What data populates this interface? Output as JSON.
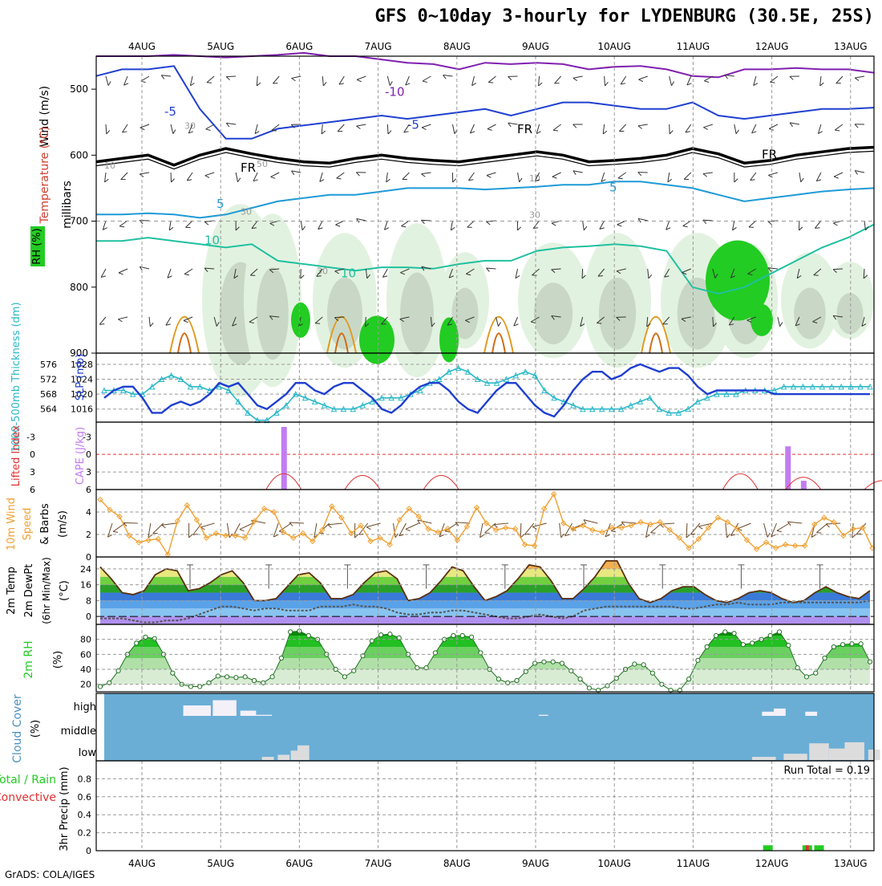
{
  "title": "GFS 0~10day 3-hourly for LYDENBURG (30.5E, 25S)",
  "credit": "GrADS: COLA/IGES",
  "date_labels": [
    "4AUG",
    "5AUG",
    "6AUG",
    "7AUG",
    "8AUG",
    "9AUG",
    "10AUG",
    "11AUG",
    "12AUG",
    "13AUG"
  ],
  "colors": {
    "frame": "#000000",
    "grid": "#9a9a9a",
    "slp": "#1f3fd0",
    "thickness": "#2ab8c8",
    "lifted": "#e03030",
    "cape": "#c27cf0",
    "wind": "#f0a030",
    "barb": "#6b4a2a",
    "cloud": "#6aaed6",
    "rh_green": "#22cc22",
    "dew": "#555555",
    "rain": "#22cc22",
    "conv": "#e03030"
  },
  "chart_data": [
    {
      "type": "contour",
      "panel": "upper-air",
      "ylabel": "millibars",
      "legend_labels": [
        "RH (%)",
        "Temperature (°C)",
        "Wind (m/s)"
      ],
      "yticks": [
        500,
        600,
        700,
        800,
        900
      ],
      "ylim": [
        900,
        450
      ],
      "contour_labels": [
        "-5",
        "-10",
        "-5",
        "FR",
        "FR",
        "FR",
        "5",
        "5",
        "10",
        "10",
        "30",
        "30",
        "30",
        "10",
        "10",
        "30",
        "50"
      ],
      "freezing_level_mb": [
        610,
        605,
        600,
        615,
        600,
        590,
        598,
        605,
        610,
        612,
        605,
        600,
        605,
        608,
        610,
        605,
        600,
        595,
        600,
        610,
        608,
        605,
        600,
        590,
        598,
        612,
        608,
        600,
        595,
        590,
        588
      ],
      "temp_minus5_mb": [
        480,
        470,
        470,
        465,
        530,
        575,
        575,
        560,
        555,
        550,
        545,
        540,
        545,
        540,
        535,
        530,
        540,
        530,
        520,
        520,
        525,
        530,
        530,
        520,
        540,
        545,
        540,
        535,
        530,
        530,
        528
      ],
      "temp_5_mb": [
        690,
        690,
        688,
        690,
        695,
        690,
        680,
        670,
        665,
        660,
        660,
        655,
        650,
        650,
        650,
        652,
        650,
        648,
        645,
        645,
        640,
        640,
        645,
        650,
        660,
        670,
        665,
        660,
        655,
        652,
        650
      ],
      "temp_10_mb": [
        730,
        730,
        725,
        730,
        735,
        740,
        735,
        760,
        765,
        770,
        775,
        770,
        770,
        772,
        765,
        760,
        760,
        745,
        740,
        738,
        735,
        738,
        745,
        800,
        810,
        800,
        780,
        760,
        740,
        725,
        705
      ],
      "temp_minus10_mb": [
        450,
        450,
        450,
        448,
        450,
        452,
        450,
        448,
        445,
        450,
        450,
        455,
        460,
        462,
        470,
        460,
        462,
        460,
        462,
        470,
        466,
        465,
        470,
        480,
        482,
        470,
        470,
        468,
        470,
        470,
        475
      ]
    },
    {
      "type": "line",
      "panel": "slp-thickness",
      "ylabel_left": "1000-500mb Thickness (dm)",
      "ylabel_right": "SLP (mb)",
      "yticks_left": [
        564,
        568,
        572,
        576
      ],
      "yticks_right": [
        1016,
        1020,
        1024,
        1028
      ],
      "ylim_slp": [
        1012.5,
        1031
      ],
      "series": [
        {
          "name": "SLP (mb)",
          "values": [
            1019,
            1021,
            1022,
            1022,
            1019,
            1015,
            1015,
            1017,
            1018,
            1017,
            1018,
            1020,
            1023,
            1022,
            1023,
            1020,
            1017,
            1016,
            1018,
            1020,
            1023,
            1023,
            1021,
            1020,
            1022,
            1023,
            1023,
            1021,
            1019,
            1016,
            1015,
            1017,
            1020,
            1022,
            1023,
            1023,
            1021,
            1018,
            1016,
            1015,
            1018,
            1021,
            1023,
            1023,
            1020,
            1017,
            1015,
            1014,
            1017,
            1021,
            1024,
            1026,
            1026,
            1024,
            1025,
            1027,
            1028,
            1027,
            1026,
            1027,
            1027,
            1025,
            1022,
            1020,
            1021,
            1021,
            1021,
            1021,
            1021,
            1021,
            1020,
            1020,
            1020,
            1020,
            1020,
            1020,
            1020,
            1020,
            1020,
            1020,
            1020
          ]
        },
        {
          "name": "Thickness",
          "values": [
            1021,
            1021,
            1021,
            1020,
            1020,
            1022,
            1024,
            1025,
            1024,
            1022,
            1022,
            1021,
            1022,
            1021,
            1018,
            1015,
            1013,
            1013,
            1015,
            1017,
            1020,
            1019,
            1018,
            1017,
            1016,
            1016,
            1016,
            1017,
            1018,
            1019,
            1019,
            1019,
            1020,
            1021,
            1023,
            1024,
            1026,
            1027,
            1026,
            1024,
            1023,
            1023,
            1024,
            1025,
            1026,
            1025,
            1021,
            1019,
            1018,
            1017,
            1016,
            1016,
            1016,
            1016,
            1016,
            1017,
            1018,
            1019,
            1016,
            1015,
            1015,
            1016,
            1018,
            1019,
            1020,
            1020,
            1020,
            1021,
            1021,
            1021,
            1021,
            1022,
            1022,
            1022,
            1022,
            1022,
            1022,
            1022,
            1022,
            1022,
            1022
          ]
        }
      ]
    },
    {
      "type": "bar",
      "panel": "cape-lifted",
      "ylabel_left": "Lifted Index",
      "ylabel_right": "CAPE (J/kg)",
      "yticks_left": [
        "-3",
        "0",
        "3",
        "6"
      ],
      "yticks_right": [
        "-3",
        "0",
        "3",
        "6"
      ],
      "lifted_zero_line": 0,
      "cape_bars": [
        {
          "day": 1.8,
          "value": 1000
        },
        {
          "day": 8.2,
          "value": 690
        },
        {
          "day": 8.4,
          "value": 140
        }
      ],
      "lifted_bumps": [
        {
          "center": 1.8,
          "height": 0.9
        },
        {
          "center": 2.8,
          "height": 0.8
        },
        {
          "center": 3.8,
          "height": 0.8
        },
        {
          "center": 7.6,
          "height": 0.9
        },
        {
          "center": 8.4,
          "height": 0.7
        },
        {
          "center": 9.4,
          "height": 0.5
        }
      ]
    },
    {
      "type": "line",
      "panel": "wind-10m",
      "ylabel": "10m Wind Speed & Barbs (m/s)",
      "yticks": [
        0,
        2,
        4
      ],
      "ylim": [
        0,
        6
      ],
      "series": [
        {
          "name": "10m Wind Speed",
          "values": [
            5.1,
            4.2,
            3.6,
            1.9,
            1.3,
            1.5,
            1.6,
            0.2,
            3.2,
            4.6,
            3.3,
            1.7,
            2.1,
            1.9,
            1.9,
            1.7,
            3.2,
            4.3,
            4.0,
            2.2,
            1.7,
            2.1,
            1.4,
            2.4,
            4.5,
            3.5,
            2.1,
            2.8,
            1.4,
            1.7,
            1.1,
            3.3,
            4.3,
            3.6,
            2.5,
            2.2,
            2.5,
            1.5,
            2.7,
            4.4,
            3.0,
            2.4,
            2.6,
            2.5,
            1.1,
            1.0,
            4.3,
            5.6,
            3.0,
            2.5,
            2.8,
            2.4,
            2.2,
            2.6,
            2.6,
            2.8,
            3.1,
            2.9,
            3.1,
            2.4,
            1.7,
            0.8,
            1.6,
            2.6,
            3.5,
            3.1,
            2.5,
            1.5,
            0.7,
            1.3,
            0.8,
            1.1,
            1.0,
            1.0,
            2.9,
            3.5,
            3.1,
            1.9,
            2.5,
            2.6,
            0.8
          ]
        }
      ]
    },
    {
      "type": "area",
      "panel": "temp-dewpoint",
      "ylabel": "2m Temp 2m DewPt (6hr Min/Max) (°C)",
      "yticks": [
        0,
        8,
        16,
        24
      ],
      "ylim": [
        -4,
        30
      ],
      "series": [
        {
          "name": "2m Temp",
          "values": [
            25,
            19,
            12,
            11,
            13,
            21,
            24,
            23,
            13,
            14,
            17,
            21,
            23,
            17,
            8,
            8,
            9,
            15,
            21,
            22,
            17,
            9,
            9,
            11,
            17,
            22,
            23,
            19,
            8,
            9,
            12,
            18,
            25,
            23,
            15,
            8,
            10,
            13,
            19,
            26,
            25,
            18,
            9,
            9,
            14,
            20,
            28,
            28,
            17,
            9,
            7,
            9,
            13,
            15,
            15,
            11,
            8,
            7,
            9,
            12,
            13,
            12,
            9,
            7,
            8,
            12,
            15,
            12,
            10,
            9,
            13
          ]
        },
        {
          "name": "2m DewPt",
          "values": [
            -1,
            -1,
            -1,
            -2,
            -3,
            -3,
            -2,
            -2,
            -1,
            1,
            3,
            5,
            5,
            4,
            3,
            4,
            4,
            3,
            3,
            3,
            5,
            5,
            5,
            6,
            5,
            5,
            4,
            2,
            1,
            1,
            2,
            2,
            3,
            3,
            2,
            1,
            0,
            -1,
            -1,
            0,
            1,
            0,
            -1,
            0,
            3,
            4,
            5,
            5,
            5,
            5,
            5,
            5,
            5,
            4,
            4,
            5,
            6,
            6,
            7,
            6,
            6,
            6,
            7,
            7,
            7,
            7,
            7,
            7,
            7,
            7,
            8
          ]
        }
      ]
    },
    {
      "type": "area",
      "panel": "rh-2m",
      "ylabel": "2m RH (%)",
      "yticks": [
        20,
        40,
        60,
        80
      ],
      "ylim": [
        10,
        100
      ],
      "series": [
        {
          "name": "2m RH",
          "values": [
            17,
            22,
            38,
            60,
            75,
            83,
            81,
            60,
            35,
            20,
            17,
            17,
            22,
            31,
            30,
            29,
            30,
            25,
            22,
            30,
            55,
            90,
            91,
            85,
            80,
            60,
            40,
            30,
            38,
            58,
            78,
            86,
            87,
            82,
            60,
            42,
            42,
            62,
            80,
            85,
            85,
            83,
            62,
            40,
            27,
            22,
            25,
            37,
            48,
            50,
            50,
            48,
            38,
            27,
            15,
            12,
            18,
            28,
            40,
            47,
            46,
            35,
            20,
            12,
            12,
            27,
            52,
            70,
            85,
            90,
            88,
            73,
            75,
            80,
            85,
            90,
            72,
            42,
            30,
            35,
            55,
            70,
            73,
            74,
            74,
            50
          ]
        }
      ]
    },
    {
      "type": "bar",
      "panel": "cloud-cover",
      "ylabel": "Cloud Cover (%)",
      "yticks": [
        "high",
        "middle",
        "low"
      ],
      "high_cloud": [
        {
          "day": 0.7,
          "width": 0.35,
          "value": 50
        },
        {
          "day": 1.05,
          "width": 0.3,
          "value": 75
        },
        {
          "day": 1.35,
          "width": 0.2,
          "value": 25
        },
        {
          "day": 1.55,
          "width": 0.2,
          "value": 5
        },
        {
          "day": 5.1,
          "width": 0.12,
          "value": 5
        },
        {
          "day": 7.95,
          "width": 0.15,
          "value": 20
        },
        {
          "day": 8.1,
          "width": 0.15,
          "value": 35
        },
        {
          "day": 8.5,
          "width": 0.15,
          "value": 20
        }
      ],
      "low_cloud": [
        {
          "day": 1.6,
          "width": 0.15,
          "value": 15
        },
        {
          "day": 1.8,
          "width": 0.15,
          "value": 25
        },
        {
          "day": 1.95,
          "width": 0.12,
          "value": 45
        },
        {
          "day": 2.05,
          "width": 0.15,
          "value": 70
        },
        {
          "day": 7.9,
          "width": 0.3,
          "value": 15
        },
        {
          "day": 8.3,
          "width": 0.3,
          "value": 30
        },
        {
          "day": 8.6,
          "width": 0.25,
          "value": 80
        },
        {
          "day": 8.85,
          "width": 0.25,
          "value": 55
        },
        {
          "day": 9.05,
          "width": 0.25,
          "value": 85
        },
        {
          "day": 9.3,
          "width": 0.15,
          "value": 50
        },
        {
          "day": 9.5,
          "width": 0.15,
          "value": 10
        }
      ]
    },
    {
      "type": "bar",
      "panel": "precip",
      "ylabel": "3hr Precip (mm)",
      "legend_labels": [
        "Total / Rain",
        "Convective"
      ],
      "yticks": [
        0,
        0.2,
        0.4,
        0.6,
        0.8
      ],
      "ylim": [
        0,
        1.0
      ],
      "run_total_label": "Run Total = 0.19",
      "rain_bars": [
        {
          "day": 7.95,
          "value": 0.06
        },
        {
          "day": 8.45,
          "value": 0.06
        },
        {
          "day": 8.6,
          "value": 0.06
        }
      ],
      "conv_bars": [
        {
          "day": 8.45,
          "value": 0.06
        }
      ]
    }
  ]
}
